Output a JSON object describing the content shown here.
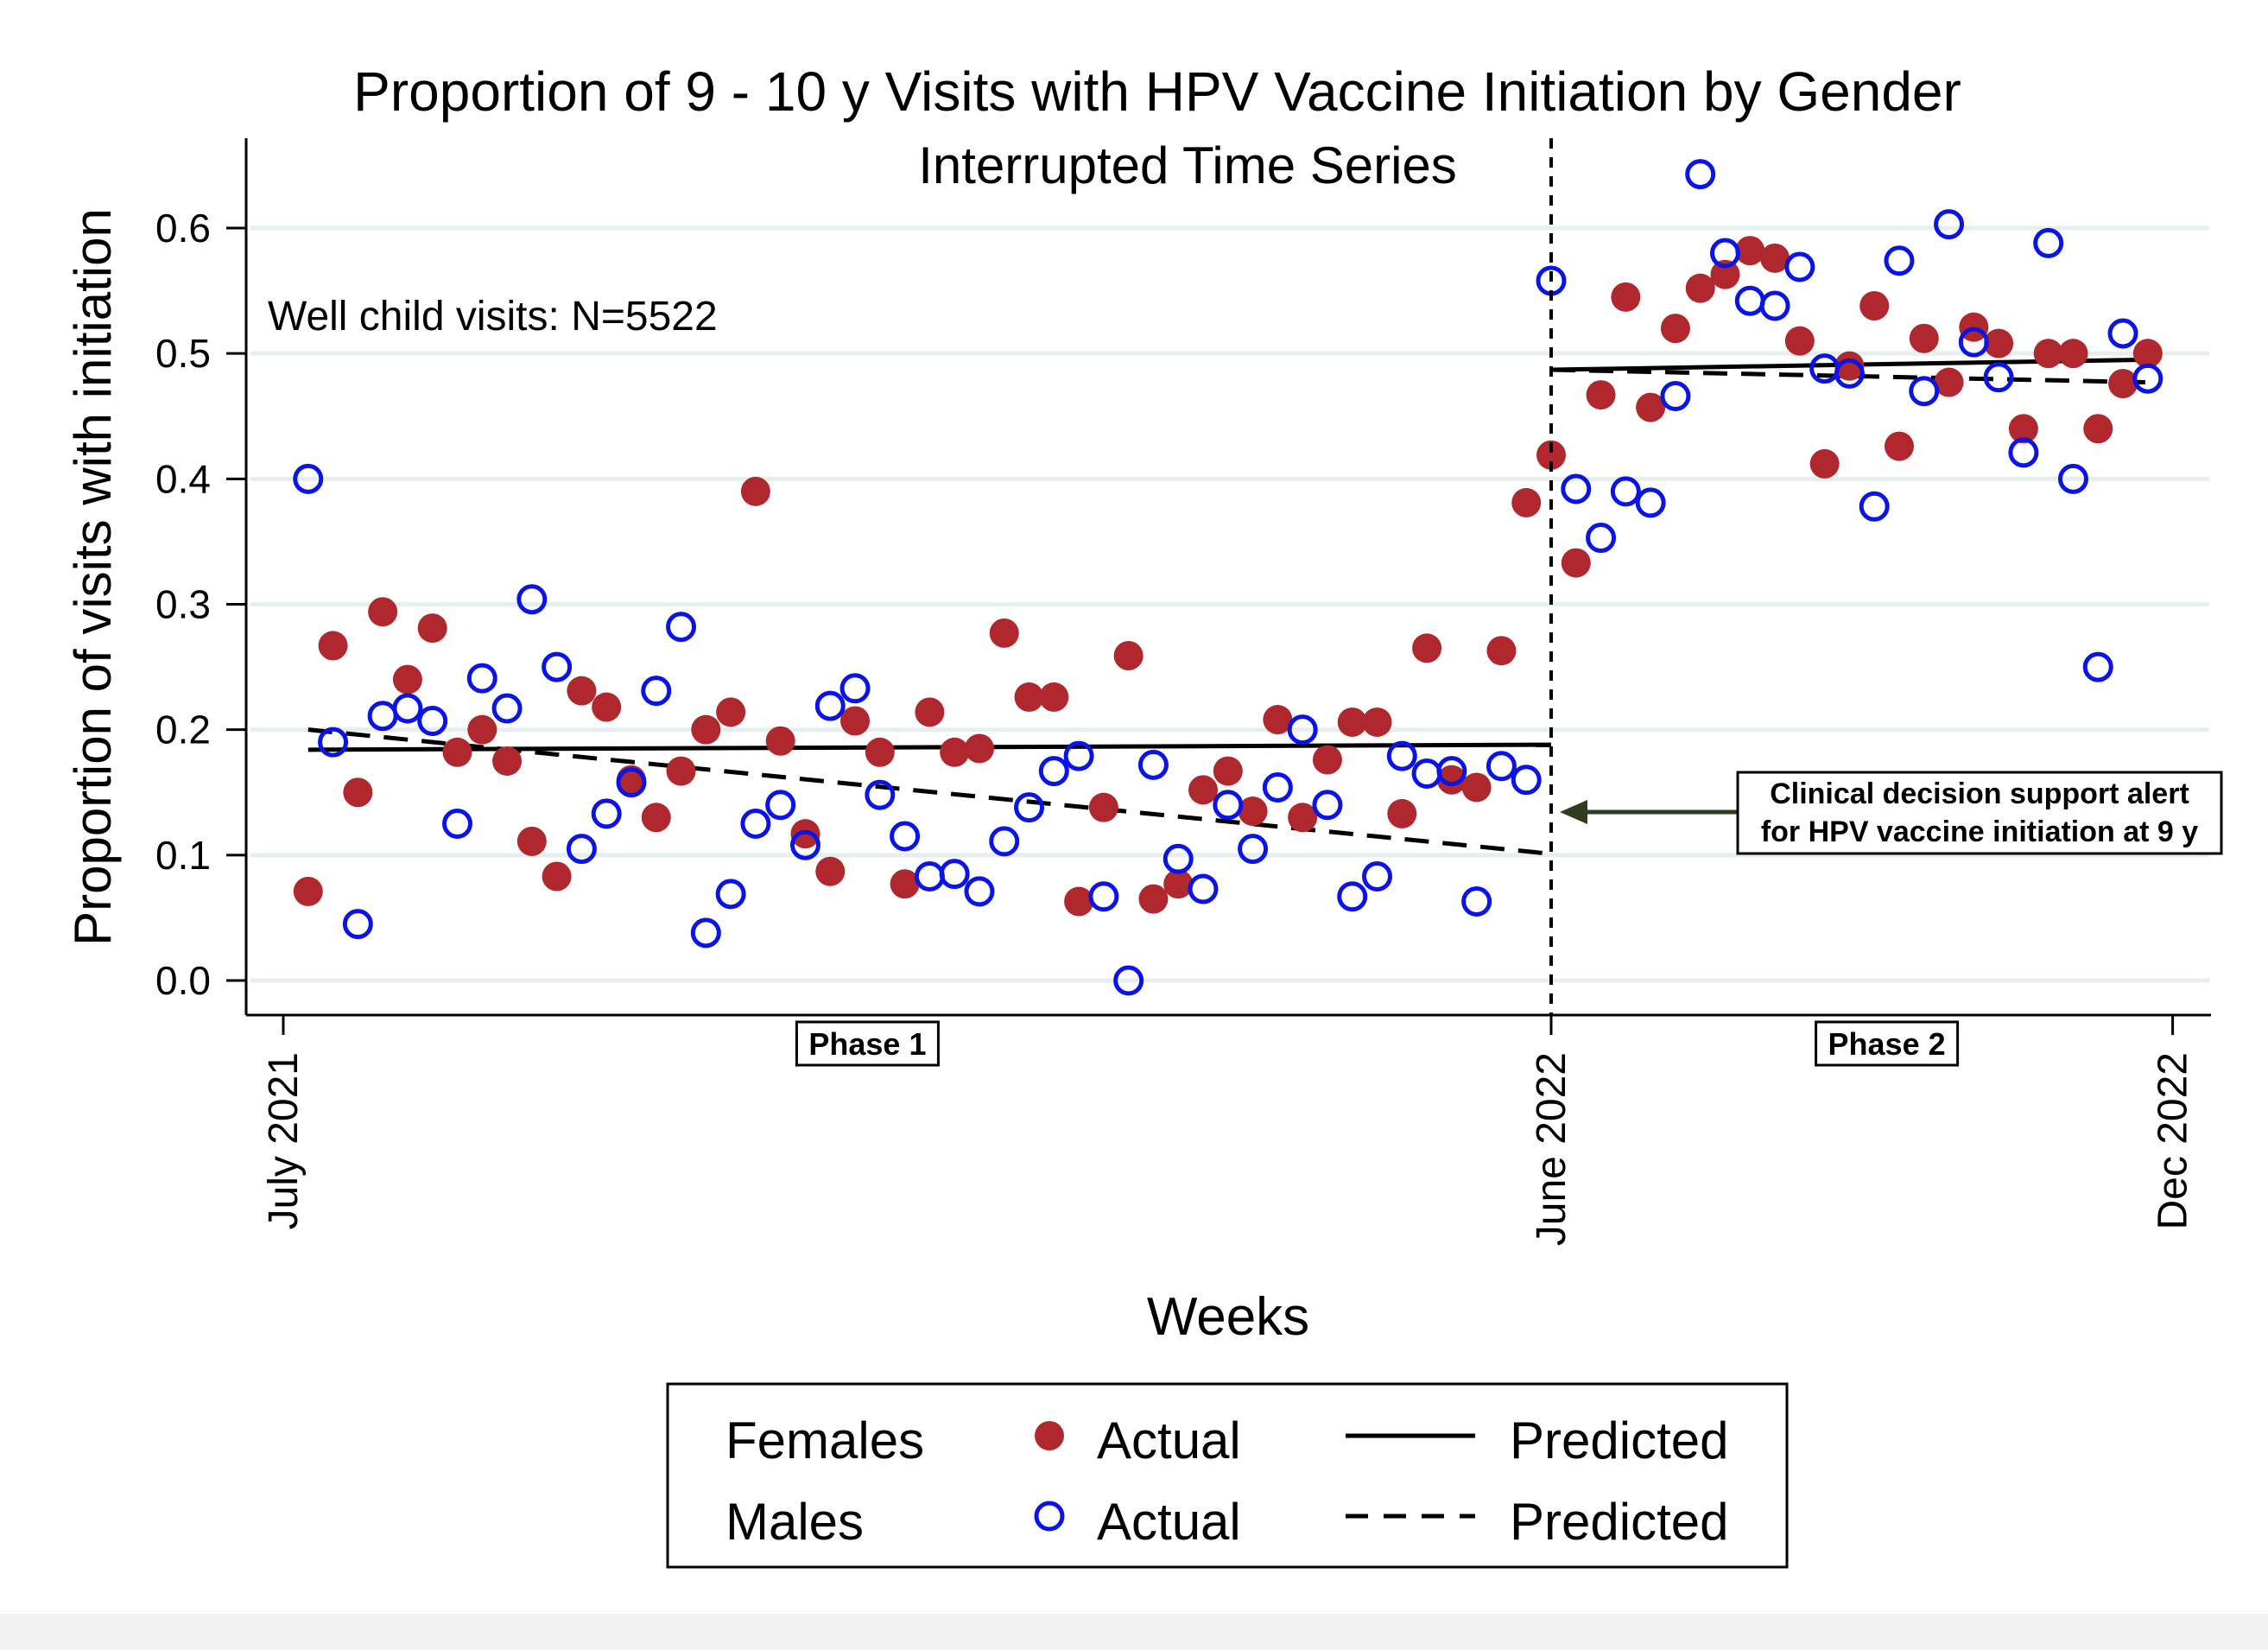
{
  "chart_data": {
    "type": "scatter",
    "title": "Proportion of 9 - 10 y Visits with HPV Vaccine Initiation by Gender",
    "subtitle": "Interrupted Time Series",
    "xlabel": "Weeks",
    "ylabel": "Proportion of visits with initiation",
    "ylim": [
      0,
      0.65
    ],
    "yticks": [
      0.0,
      0.1,
      0.2,
      0.3,
      0.4,
      0.5,
      0.6
    ],
    "ytick_labels": [
      "0.0",
      "0.1",
      "0.2",
      "0.3",
      "0.4",
      "0.5",
      "0.6"
    ],
    "xlim": [
      -1,
      78
    ],
    "xticks": [
      {
        "week": 0,
        "label": "July 2021"
      },
      {
        "week": 51,
        "label": "June 2022"
      },
      {
        "week": 76,
        "label": "Dec 2022"
      }
    ],
    "grid": true,
    "annotation_n": "Well child visits: N=5522",
    "intervention": {
      "week": 51,
      "label_line1": "Clinical decision support alert",
      "label_line2": "for HPV vaccine initiation at 9 y"
    },
    "phases": [
      {
        "label": "Phase 1",
        "week": 23.5
      },
      {
        "label": "Phase 2",
        "week": 64.5
      }
    ],
    "series": [
      {
        "name": "Females Actual",
        "marker": "filled-circle",
        "color": "#b0282e",
        "x": [
          1,
          2,
          3,
          4,
          5,
          6,
          7,
          8,
          9,
          10,
          11,
          12,
          13,
          14,
          15,
          16,
          17,
          18,
          19,
          20,
          21,
          22,
          23,
          24,
          25,
          26,
          27,
          28,
          29,
          30,
          31,
          32,
          33,
          34,
          35,
          36,
          37,
          38,
          39,
          40,
          41,
          42,
          43,
          44,
          45,
          46,
          47,
          48,
          49,
          50,
          51,
          52,
          53,
          54,
          55,
          56,
          57,
          58,
          59,
          60,
          61,
          62,
          63,
          64,
          65,
          66,
          67,
          68,
          69,
          70,
          71,
          72,
          73,
          74,
          75
        ],
        "y": [
          0.071,
          0.267,
          0.15,
          0.294,
          0.24,
          0.281,
          0.182,
          0.2,
          0.175,
          0.111,
          0.083,
          0.231,
          0.218,
          0.16,
          0.13,
          0.167,
          0.2,
          0.214,
          0.39,
          0.191,
          0.117,
          0.087,
          0.207,
          0.182,
          0.077,
          0.214,
          0.182,
          0.185,
          0.277,
          0.226,
          0.226,
          0.063,
          0.138,
          0.259,
          0.065,
          0.077,
          0.152,
          0.167,
          0.135,
          0.208,
          0.13,
          0.176,
          0.206,
          0.206,
          0.133,
          0.265,
          0.16,
          0.154,
          0.263,
          0.381,
          0.419,
          0.333,
          0.467,
          0.545,
          0.457,
          0.52,
          0.552,
          0.563,
          0.582,
          0.576,
          0.51,
          0.412,
          0.49,
          0.538,
          0.426,
          0.512,
          0.477,
          0.521,
          0.508,
          0.44,
          0.5,
          0.5,
          0.44,
          0.476,
          0.5
        ]
      },
      {
        "name": "Males Actual",
        "marker": "hollow-circle",
        "color": "#0a14e6",
        "x": [
          1,
          2,
          3,
          4,
          5,
          6,
          7,
          8,
          9,
          10,
          11,
          12,
          13,
          14,
          15,
          16,
          17,
          18,
          19,
          20,
          21,
          22,
          23,
          24,
          25,
          26,
          27,
          28,
          29,
          30,
          31,
          32,
          33,
          34,
          35,
          36,
          37,
          38,
          39,
          40,
          41,
          42,
          43,
          44,
          45,
          46,
          47,
          48,
          49,
          50,
          51,
          52,
          53,
          54,
          55,
          56,
          57,
          58,
          59,
          60,
          61,
          62,
          63,
          64,
          65,
          66,
          67,
          68,
          69,
          70,
          71,
          72,
          73,
          74,
          75
        ],
        "y": [
          0.4,
          0.19,
          0.045,
          0.211,
          0.217,
          0.207,
          0.125,
          0.241,
          0.217,
          0.304,
          0.25,
          0.105,
          0.133,
          0.158,
          0.231,
          0.282,
          0.038,
          0.069,
          0.125,
          0.14,
          0.108,
          0.219,
          0.233,
          0.148,
          0.115,
          0.083,
          0.085,
          0.071,
          0.111,
          0.138,
          0.167,
          0.179,
          0.067,
          0.0,
          0.172,
          0.097,
          0.073,
          0.14,
          0.105,
          0.154,
          0.2,
          0.14,
          0.067,
          0.083,
          0.179,
          0.165,
          0.167,
          0.063,
          0.171,
          0.16,
          0.558,
          0.392,
          0.353,
          0.39,
          0.381,
          0.466,
          0.643,
          0.58,
          0.542,
          0.538,
          0.569,
          0.488,
          0.484,
          0.378,
          0.574,
          0.47,
          0.603,
          0.509,
          0.481,
          0.421,
          0.588,
          0.4,
          0.25,
          0.516,
          0.48
        ]
      }
    ],
    "trend_lines": [
      {
        "name": "Females Predicted",
        "style": "solid",
        "segments": [
          {
            "x": [
              1,
              51
            ],
            "y": [
              0.184,
              0.188
            ]
          },
          {
            "x": [
              51,
              75
            ],
            "y": [
              0.487,
              0.495
            ]
          }
        ]
      },
      {
        "name": "Males Predicted",
        "style": "dashed",
        "segments": [
          {
            "x": [
              1,
              51
            ],
            "y": [
              0.2,
              0.101
            ]
          },
          {
            "x": [
              51,
              75
            ],
            "y": [
              0.487,
              0.477
            ]
          }
        ]
      }
    ],
    "legend": {
      "placement": "bottom",
      "rows": [
        {
          "group": "Females",
          "marker": "filled-circle",
          "marker_label": "Actual",
          "line": "solid",
          "line_label": "Predicted"
        },
        {
          "group": "Males",
          "marker": "hollow-circle",
          "marker_label": "Actual",
          "line": "dashed",
          "line_label": "Predicted"
        }
      ]
    }
  }
}
